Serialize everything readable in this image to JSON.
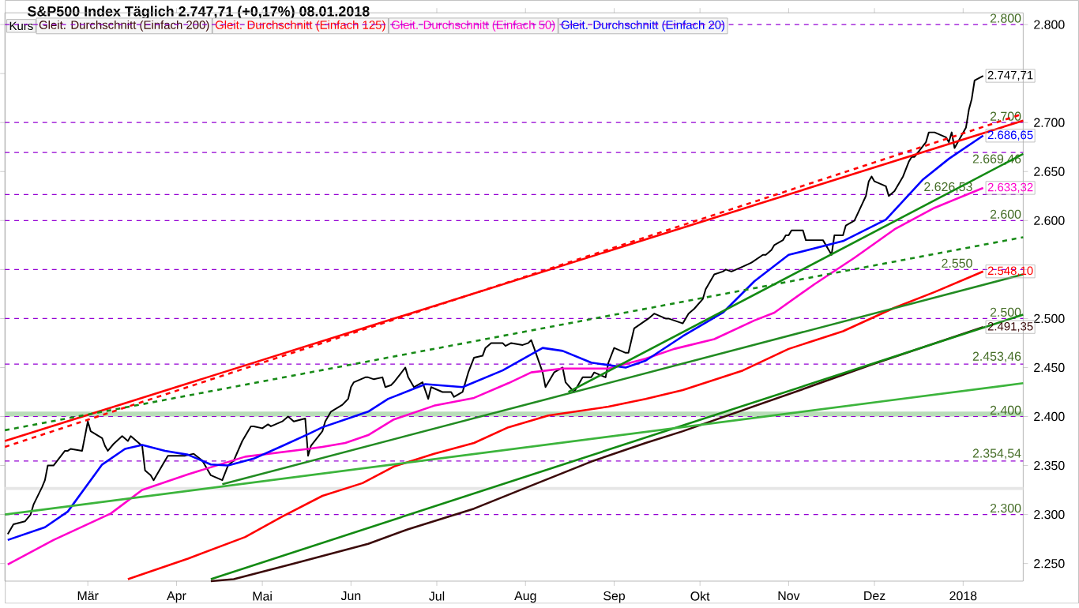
{
  "chart_data": {
    "type": "line",
    "title": "S&P500 Index   Täglich   2.747,71 (+0,17%)   08.01.2018",
    "xlim": [
      "2017-01-31",
      "2018-01-22"
    ],
    "ylim": [
      2232,
      2812
    ],
    "xticks": [
      {
        "value": "2017-03-01",
        "label": "Mär"
      },
      {
        "value": "2017-04-01",
        "label": "Apr"
      },
      {
        "value": "2017-05-01",
        "label": "Mai"
      },
      {
        "value": "2017-06-01",
        "label": "Jun"
      },
      {
        "value": "2017-07-01",
        "label": "Jul"
      },
      {
        "value": "2017-08-01",
        "label": "Aug"
      },
      {
        "value": "2017-09-01",
        "label": "Sep"
      },
      {
        "value": "2017-10-01",
        "label": "Okt"
      },
      {
        "value": "2017-11-01",
        "label": "Nov"
      },
      {
        "value": "2017-12-01",
        "label": "Dez"
      },
      {
        "value": "2018-01-01",
        "label": "2018"
      }
    ],
    "yticks": [
      {
        "value": 2250,
        "label": "2.250"
      },
      {
        "value": 2300,
        "label": "2.300"
      },
      {
        "value": 2350,
        "label": "2.350"
      },
      {
        "value": 2400,
        "label": "2.400"
      },
      {
        "value": 2450,
        "label": "2.450"
      },
      {
        "value": 2500,
        "label": "2.500"
      },
      {
        "value": 2550,
        "label": null
      },
      {
        "value": 2600,
        "label": "2.600"
      },
      {
        "value": 2650,
        "label": "2.650"
      },
      {
        "value": 2700,
        "label": "2.700"
      },
      {
        "value": 2750,
        "label": null
      },
      {
        "value": 2800,
        "label": "2.800"
      }
    ],
    "legend": "top left",
    "marker": "none",
    "series": [
      {
        "name": "Kurs",
        "color": "#000000",
        "x": [
          "2017-02-01",
          "2017-02-03",
          "2017-02-07",
          "2017-02-09",
          "2017-02-10",
          "2017-02-13",
          "2017-02-14",
          "2017-02-15",
          "2017-02-17",
          "2017-02-21",
          "2017-02-22",
          "2017-02-23",
          "2017-02-27",
          "2017-03-01",
          "2017-03-02",
          "2017-03-06",
          "2017-03-07",
          "2017-03-08",
          "2017-03-10",
          "2017-03-13",
          "2017-03-15",
          "2017-03-16",
          "2017-03-20",
          "2017-03-21",
          "2017-03-23",
          "2017-03-24",
          "2017-03-28",
          "2017-03-29",
          "2017-03-31",
          "2017-04-04",
          "2017-04-07",
          "2017-04-10",
          "2017-04-13",
          "2017-04-17",
          "2017-04-19",
          "2017-04-21",
          "2017-04-24",
          "2017-04-27",
          "2017-04-28",
          "2017-05-01",
          "2017-05-03",
          "2017-05-04",
          "2017-05-08",
          "2017-05-10",
          "2017-05-12",
          "2017-05-16",
          "2017-05-17",
          "2017-05-18",
          "2017-05-22",
          "2017-05-23",
          "2017-05-25",
          "2017-05-29",
          "2017-05-31",
          "2017-06-01",
          "2017-06-02",
          "2017-06-06",
          "2017-06-07",
          "2017-06-09",
          "2017-06-12",
          "2017-06-13",
          "2017-06-15",
          "2017-06-16",
          "2017-06-20",
          "2017-06-21",
          "2017-06-23",
          "2017-06-26",
          "2017-06-28",
          "2017-06-29",
          "2017-07-03",
          "2017-07-06",
          "2017-07-07",
          "2017-07-10",
          "2017-07-12",
          "2017-07-14",
          "2017-07-17",
          "2017-07-18",
          "2017-07-20",
          "2017-07-24",
          "2017-07-25",
          "2017-07-27",
          "2017-07-31",
          "2017-08-02",
          "2017-08-03",
          "2017-08-04",
          "2017-08-07",
          "2017-08-08",
          "2017-08-11",
          "2017-08-14",
          "2017-08-15",
          "2017-08-18",
          "2017-08-21",
          "2017-08-24",
          "2017-08-25",
          "2017-08-29",
          "2017-08-30",
          "2017-09-01",
          "2017-09-05",
          "2017-09-06",
          "2017-09-08",
          "2017-09-12",
          "2017-09-13",
          "2017-09-15",
          "2017-09-19",
          "2017-09-20",
          "2017-09-25",
          "2017-09-27",
          "2017-09-29",
          "2017-10-02",
          "2017-10-03",
          "2017-10-06",
          "2017-10-09",
          "2017-10-10",
          "2017-10-12",
          "2017-10-16",
          "2017-10-19",
          "2017-10-23",
          "2017-10-24",
          "2017-10-26",
          "2017-10-27",
          "2017-10-30",
          "2017-10-31",
          "2017-11-01",
          "2017-11-02",
          "2017-11-06",
          "2017-11-07",
          "2017-11-10",
          "2017-11-13",
          "2017-11-16",
          "2017-11-17",
          "2017-11-20",
          "2017-11-21",
          "2017-11-24",
          "2017-11-28",
          "2017-11-29",
          "2017-11-30",
          "2017-12-01",
          "2017-12-05",
          "2017-12-06",
          "2017-12-08",
          "2017-12-11",
          "2017-12-13",
          "2017-12-14",
          "2017-12-15",
          "2017-12-19",
          "2017-12-20",
          "2017-12-22",
          "2017-12-26",
          "2017-12-27",
          "2017-12-28",
          "2017-12-29",
          "2018-01-02",
          "2018-01-03",
          "2018-01-04",
          "2018-01-05",
          "2018-01-08"
        ],
        "values": [
          2280,
          2290,
          2293,
          2300,
          2310,
          2328,
          2335,
          2350,
          2350,
          2365,
          2365,
          2367,
          2365,
          2395,
          2385,
          2378,
          2370,
          2365,
          2372,
          2380,
          2375,
          2380,
          2370,
          2345,
          2340,
          2335,
          2355,
          2360,
          2360,
          2360,
          2362,
          2355,
          2340,
          2335,
          2350,
          2355,
          2375,
          2390,
          2390,
          2388,
          2392,
          2390,
          2395,
          2400,
          2395,
          2398,
          2360,
          2370,
          2385,
          2395,
          2405,
          2412,
          2418,
          2430,
          2435,
          2440,
          2440,
          2438,
          2440,
          2430,
          2432,
          2435,
          2450,
          2440,
          2430,
          2435,
          2418,
          2430,
          2425,
          2425,
          2420,
          2425,
          2445,
          2460,
          2462,
          2470,
          2475,
          2475,
          2472,
          2475,
          2473,
          2475,
          2478,
          2470,
          2445,
          2430,
          2445,
          2450,
          2435,
          2425,
          2440,
          2440,
          2445,
          2440,
          2455,
          2470,
          2465,
          2465,
          2490,
          2498,
          2500,
          2505,
          2500,
          2500,
          2495,
          2505,
          2510,
          2520,
          2530,
          2545,
          2548,
          2550,
          2548,
          2553,
          2557,
          2565,
          2565,
          2570,
          2575,
          2580,
          2585,
          2585,
          2590,
          2590,
          2580,
          2580,
          2580,
          2565,
          2585,
          2585,
          2595,
          2600,
          2625,
          2640,
          2645,
          2640,
          2635,
          2625,
          2630,
          2645,
          2660,
          2665,
          2665,
          2680,
          2690,
          2690,
          2685,
          2680,
          2690,
          2674,
          2695,
          2713,
          2724,
          2743,
          2747.71
        ],
        "value_labels": [
          null,
          null,
          null,
          null,
          null,
          null,
          null,
          null,
          null,
          null,
          null,
          null,
          null,
          null,
          null,
          null,
          null,
          null,
          null,
          null,
          null,
          null,
          null,
          null,
          null,
          null,
          null,
          null,
          null,
          null,
          null,
          null,
          null,
          null,
          null,
          null,
          null,
          null,
          null,
          null,
          null,
          null,
          null,
          null,
          null,
          null,
          null,
          null,
          null,
          null,
          null,
          null,
          null,
          null,
          null,
          null,
          null,
          null,
          null,
          null,
          null,
          null,
          null,
          null,
          null,
          null,
          null,
          null,
          null,
          null,
          null,
          null,
          null,
          null,
          null,
          null,
          null,
          null,
          null,
          null,
          null,
          null,
          null,
          null,
          null,
          null,
          null,
          null,
          null,
          null,
          null,
          null,
          null,
          null,
          null,
          null,
          null,
          null,
          null,
          null,
          null,
          null,
          null,
          null,
          null,
          null,
          null,
          null,
          null,
          null,
          null,
          null,
          null,
          null,
          null,
          null,
          null,
          null,
          null,
          null,
          null,
          null,
          null,
          null,
          null,
          null,
          null,
          null,
          null,
          null,
          null,
          null,
          null,
          null,
          null,
          null,
          null,
          null,
          null,
          null,
          null,
          null,
          null,
          null,
          null,
          null,
          null,
          null,
          null,
          null,
          null,
          null,
          null,
          null,
          "2.747,71"
        ]
      },
      {
        "name": "Gleit. Durchschnitt (Einfach 200)",
        "color": "#3b0a0a",
        "x": [
          "2017-04-13",
          "2017-04-21",
          "2017-05-12",
          "2017-06-07",
          "2017-06-21",
          "2017-07-14",
          "2017-07-31",
          "2017-08-24",
          "2017-09-12",
          "2017-09-25",
          "2017-11-07",
          "2017-11-30",
          "2018-01-08"
        ],
        "values": [
          2232,
          2234,
          2250,
          2270,
          2285,
          2306,
          2326,
          2354,
          2373,
          2385,
          2429,
          2453,
          2491.35
        ],
        "value_labels": [
          null,
          null,
          null,
          null,
          null,
          null,
          null,
          null,
          null,
          null,
          null,
          null,
          "2.491,35"
        ]
      },
      {
        "name": "Gleit. Durchschnitt (Einfach 125)",
        "color": "#ff0000",
        "x": [
          "2017-03-15",
          "2017-04-05",
          "2017-04-25",
          "2017-05-08",
          "2017-05-22",
          "2017-06-05",
          "2017-06-16",
          "2017-06-30",
          "2017-07-14",
          "2017-07-26",
          "2017-08-09",
          "2017-08-30",
          "2017-09-12",
          "2017-09-25",
          "2017-10-16",
          "2017-11-01",
          "2017-11-20",
          "2017-12-08",
          "2017-12-22",
          "2018-01-08"
        ],
        "values": [
          2234,
          2255,
          2277,
          2298,
          2319,
          2332,
          2349,
          2362,
          2373,
          2389,
          2401,
          2410,
          2418,
          2427,
          2447,
          2469,
          2487,
          2511,
          2527,
          2548.1
        ],
        "value_labels": [
          null,
          null,
          null,
          null,
          null,
          null,
          null,
          null,
          null,
          null,
          null,
          null,
          null,
          null,
          null,
          null,
          null,
          null,
          null,
          "2.548,10"
        ]
      },
      {
        "name": "Gleit. Durchschnitt (Einfach 50)",
        "color": "#ff00cc",
        "x": [
          "2017-02-01",
          "2017-02-17",
          "2017-03-09",
          "2017-03-20",
          "2017-04-05",
          "2017-04-25",
          "2017-05-17",
          "2017-05-22",
          "2017-05-30",
          "2017-06-07",
          "2017-06-16",
          "2017-06-30",
          "2017-07-14",
          "2017-07-26",
          "2017-08-03",
          "2017-08-14",
          "2017-08-30",
          "2017-09-12",
          "2017-09-22",
          "2017-10-06",
          "2017-10-20",
          "2017-10-27",
          "2017-11-10",
          "2017-11-24",
          "2017-12-08",
          "2017-12-22",
          "2018-01-08"
        ],
        "values": [
          2249,
          2274,
          2301,
          2325,
          2341,
          2359,
          2367,
          2369,
          2373,
          2381,
          2397,
          2411,
          2419,
          2434,
          2445,
          2449,
          2449,
          2459,
          2469,
          2479,
          2498,
          2506,
          2535,
          2562,
          2591,
          2613,
          2633.32
        ],
        "value_labels": [
          null,
          null,
          null,
          null,
          null,
          null,
          null,
          null,
          null,
          null,
          null,
          null,
          null,
          null,
          null,
          null,
          null,
          null,
          null,
          null,
          null,
          null,
          null,
          null,
          null,
          null,
          "2.633,32"
        ]
      },
      {
        "name": "Gleit. Durchschnitt (Einfach 20)",
        "color": "#0000ff",
        "x": [
          "2017-02-01",
          "2017-02-14",
          "2017-02-22",
          "2017-02-28",
          "2017-03-06",
          "2017-03-14",
          "2017-03-20",
          "2017-03-28",
          "2017-04-05",
          "2017-04-13",
          "2017-04-19",
          "2017-04-28",
          "2017-05-08",
          "2017-05-17",
          "2017-05-22",
          "2017-06-01",
          "2017-06-07",
          "2017-06-14",
          "2017-06-27",
          "2017-07-10",
          "2017-07-24",
          "2017-08-07",
          "2017-08-14",
          "2017-08-24",
          "2017-09-05",
          "2017-09-12",
          "2017-09-25",
          "2017-10-09",
          "2017-10-20",
          "2017-11-01",
          "2017-11-20",
          "2017-12-05",
          "2017-12-18",
          "2017-12-27",
          "2018-01-08"
        ],
        "values": [
          2274,
          2287,
          2303,
          2327,
          2351,
          2367,
          2371,
          2365,
          2361,
          2351,
          2350,
          2357,
          2370,
          2382,
          2389,
          2399,
          2405,
          2418,
          2433,
          2430,
          2447,
          2470,
          2467,
          2455,
          2450,
          2457,
          2482,
          2506,
          2538,
          2565,
          2579,
          2601,
          2642,
          2663,
          2686.65
        ],
        "value_labels": [
          null,
          null,
          null,
          null,
          null,
          null,
          null,
          null,
          null,
          null,
          null,
          null,
          null,
          null,
          null,
          null,
          null,
          null,
          null,
          null,
          null,
          null,
          null,
          null,
          null,
          null,
          null,
          null,
          null,
          null,
          null,
          null,
          null,
          null,
          "2.686,65"
        ]
      },
      {
        "color": "#ff0000",
        "x": [
          "2017-01-31",
          "2018-01-22"
        ],
        "values": [
          2375,
          2702
        ]
      },
      {
        "color": "#ff0000",
        "line_style": "dashed",
        "x": [
          "2017-01-31",
          "2018-01-22"
        ],
        "values": [
          2369,
          2709
        ]
      },
      {
        "color": "#178a17",
        "line_style": "dashed",
        "x": [
          "2017-01-31",
          "2018-01-22"
        ],
        "values": [
          2386,
          2583
        ]
      },
      {
        "color": "#228b22",
        "x": [
          "2017-04-17",
          "2018-01-22"
        ],
        "values": [
          2331,
          2545
        ]
      },
      {
        "color": "#138a13",
        "x": [
          "2017-08-16",
          "2018-01-22"
        ],
        "values": [
          2425,
          2668
        ]
      },
      {
        "color": "#138a13",
        "x": [
          "2017-04-13",
          "2018-01-22"
        ],
        "values": [
          2234,
          2504
        ]
      },
      {
        "color": "#3cb43c",
        "x": [
          "2017-01-31",
          "2018-01-22"
        ],
        "values": [
          2300,
          2434
        ]
      }
    ],
    "bands": [
      {
        "axis": "y",
        "from": 2400,
        "to": 2405,
        "color": "#b9dcb9"
      },
      {
        "axis": "y",
        "from": 2325,
        "to": 2328,
        "color": "#e6e6e6"
      }
    ],
    "ref_lines": [
      {
        "axis": "y",
        "value": 2800,
        "label": "2.800",
        "color": "#9400d3",
        "line_style": "dashed"
      },
      {
        "axis": "y",
        "value": 2700,
        "label": "2.700",
        "color": "#9400d3",
        "line_style": "dashed"
      },
      {
        "axis": "y",
        "value": 2669.46,
        "label": "2.669,46",
        "color": "#9400d3",
        "line_style": "dashed"
      },
      {
        "axis": "y",
        "value": 2626.53,
        "label": "2.626,53",
        "color": "#9400d3",
        "line_style": "dashed"
      },
      {
        "axis": "y",
        "value": 2600,
        "label": "2.600",
        "color": "#9400d3",
        "line_style": "dashed"
      },
      {
        "axis": "y",
        "value": 2550,
        "label": "2.550",
        "color": "#9400d3",
        "line_style": "dashed"
      },
      {
        "axis": "y",
        "value": 2500,
        "label": "2.500",
        "color": "#9400d3",
        "line_style": "dashed"
      },
      {
        "axis": "y",
        "value": 2453.46,
        "label": "2.453,46",
        "color": "#9400d3",
        "line_style": "dashed"
      },
      {
        "axis": "y",
        "value": 2400,
        "label": "2.400",
        "color": "#9400d3",
        "line_style": "dashed"
      },
      {
        "axis": "y",
        "value": 2354.54,
        "label": "2.354,54",
        "color": "#9400d3",
        "line_style": "dashed"
      },
      {
        "axis": "y",
        "value": 2300,
        "label": "2.300",
        "color": "#9400d3",
        "line_style": "dashed"
      }
    ]
  }
}
